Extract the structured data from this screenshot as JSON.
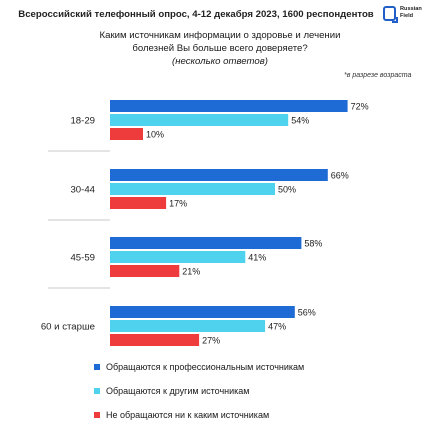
{
  "header": {
    "survey": "Всероссийский телефонный опрос, 4-12 декабря 2023, 1600 респондентов",
    "logo_line1": "Russian",
    "logo_line2": "Field"
  },
  "question": {
    "line1": "Каким источникам информации о здоровье и лечении",
    "line2": "болезней Вы больше всего доверяете?",
    "note": "(несколько ответов)"
  },
  "age_note": "*в разрезе возраста",
  "colors": {
    "professional": "#1f6bd6",
    "other": "#4fd2ee",
    "none": "#ee3b3b",
    "separator": "#b9b9b9"
  },
  "chart_data": {
    "type": "bar",
    "orientation": "horizontal",
    "categories": [
      "18-29",
      "30-44",
      "45-59",
      "60 и старше"
    ],
    "series": [
      {
        "name": "Обращаются к профессиональным источникам",
        "values": [
          72,
          66,
          58,
          56
        ]
      },
      {
        "name": "Обращаются к другим источникам",
        "values": [
          54,
          50,
          41,
          47
        ]
      },
      {
        "name": "Не обращаются ни к каким источникам",
        "values": [
          10,
          17,
          21,
          27
        ]
      }
    ],
    "value_suffix": "%",
    "xlim": [
      0,
      100
    ],
    "grid": false,
    "legend_position": "bottom"
  }
}
